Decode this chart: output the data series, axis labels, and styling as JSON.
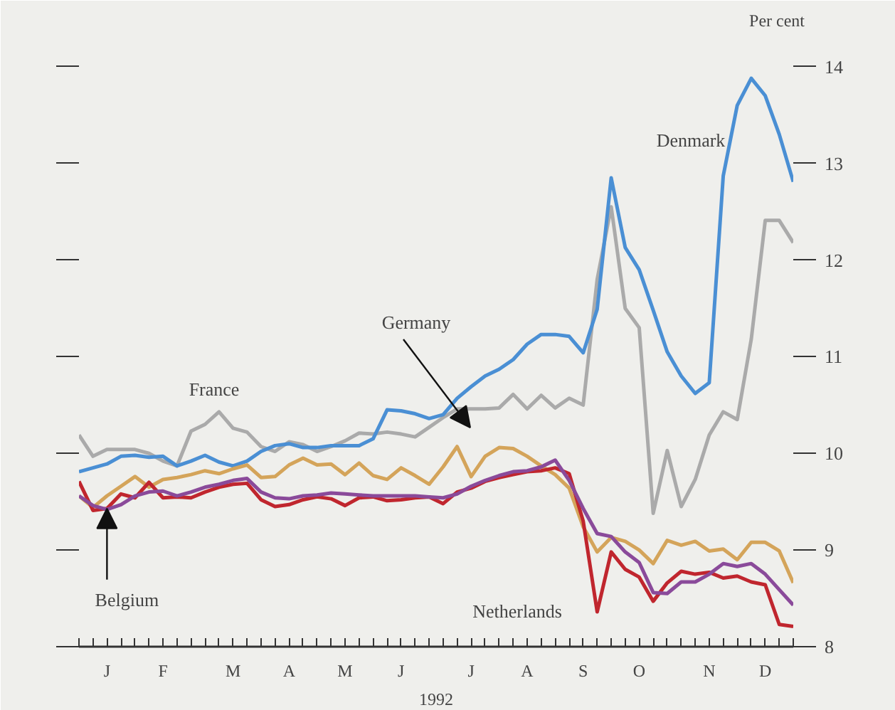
{
  "chart_data": {
    "type": "line",
    "xlabel": "1992",
    "ylabel": "Per cent",
    "categories": [
      null,
      null,
      "J",
      null,
      null,
      null,
      "F",
      null,
      null,
      null,
      null,
      "M",
      null,
      null,
      null,
      "A",
      null,
      null,
      null,
      "M",
      null,
      null,
      null,
      "J",
      null,
      null,
      null,
      null,
      "J",
      null,
      null,
      null,
      "A",
      null,
      null,
      null,
      "S",
      null,
      null,
      null,
      "O",
      null,
      null,
      null,
      null,
      "N",
      null,
      null,
      null,
      "D",
      null,
      null
    ],
    "ylim": [
      8,
      14.3
    ],
    "yticks": [
      8,
      9,
      10,
      11,
      12,
      13,
      14
    ],
    "grid": false,
    "marker": "none",
    "line_style": "solid",
    "series": [
      {
        "color": "#aaaaaa",
        "values": [
          10.19,
          9.97,
          10.04,
          10.04,
          10.04,
          10.0,
          9.92,
          9.87,
          10.23,
          10.3,
          10.43,
          10.26,
          10.22,
          10.07,
          10.02,
          10.12,
          10.09,
          10.02,
          10.07,
          10.13,
          10.21,
          10.2,
          10.22,
          10.2,
          10.17,
          10.27,
          10.37,
          10.46,
          10.46,
          10.46,
          10.47,
          10.61,
          10.46,
          10.6,
          10.47,
          10.57,
          10.5,
          11.8,
          12.55,
          11.5,
          11.3,
          9.38,
          10.03,
          9.45,
          9.73,
          10.19,
          10.43,
          10.35,
          11.18,
          12.41,
          12.41,
          12.18
        ]
      },
      {
        "color": "#4a8fd4",
        "values": [
          9.81,
          9.85,
          9.89,
          9.97,
          9.98,
          9.96,
          9.97,
          9.87,
          9.92,
          9.98,
          9.91,
          9.87,
          9.92,
          10.02,
          10.08,
          10.1,
          10.06,
          10.06,
          10.08,
          10.08,
          10.08,
          10.15,
          10.45,
          10.44,
          10.41,
          10.36,
          10.4,
          10.57,
          10.69,
          10.8,
          10.87,
          10.97,
          11.13,
          11.23,
          11.23,
          11.21,
          11.04,
          11.49,
          12.85,
          12.13,
          11.9,
          11.48,
          11.05,
          10.8,
          10.62,
          10.73,
          12.87,
          13.6,
          13.88,
          13.7,
          13.3,
          12.81
        ]
      },
      {
        "color": "#d4a45a",
        "values": [
          9.56,
          9.44,
          9.56,
          9.66,
          9.76,
          9.65,
          9.73,
          9.75,
          9.78,
          9.82,
          9.79,
          9.84,
          9.88,
          9.75,
          9.76,
          9.88,
          9.95,
          9.88,
          9.89,
          9.78,
          9.9,
          9.77,
          9.73,
          9.85,
          9.77,
          9.68,
          9.86,
          10.07,
          9.76,
          9.97,
          10.06,
          10.05,
          9.97,
          9.87,
          9.78,
          9.64,
          9.24,
          8.98,
          9.13,
          9.09,
          9.0,
          8.86,
          9.1,
          9.05,
          9.09,
          8.99,
          9.01,
          8.9,
          9.08,
          9.08,
          8.99,
          8.66
        ]
      },
      {
        "color": "#c0262e",
        "values": [
          9.71,
          9.41,
          9.43,
          9.58,
          9.54,
          9.7,
          9.54,
          9.55,
          9.54,
          9.6,
          9.65,
          9.68,
          9.69,
          9.52,
          9.45,
          9.47,
          9.52,
          9.55,
          9.53,
          9.46,
          9.54,
          9.55,
          9.51,
          9.52,
          9.54,
          9.55,
          9.48,
          9.6,
          9.64,
          9.71,
          9.75,
          9.78,
          9.81,
          9.82,
          9.85,
          9.79,
          9.3,
          8.36,
          8.98,
          8.8,
          8.72,
          8.47,
          8.66,
          8.78,
          8.75,
          8.77,
          8.71,
          8.73,
          8.67,
          8.64,
          8.23,
          8.21
        ]
      },
      {
        "color": "#8a4a9a",
        "values": [
          9.56,
          9.46,
          9.42,
          9.47,
          9.56,
          9.6,
          9.61,
          9.56,
          9.6,
          9.65,
          9.68,
          9.72,
          9.74,
          9.6,
          9.54,
          9.53,
          9.56,
          9.57,
          9.59,
          9.58,
          9.57,
          9.56,
          9.56,
          9.56,
          9.56,
          9.55,
          9.54,
          9.58,
          9.66,
          9.72,
          9.77,
          9.81,
          9.82,
          9.86,
          9.93,
          9.72,
          9.43,
          9.17,
          9.14,
          8.98,
          8.87,
          8.56,
          8.55,
          8.67,
          8.67,
          8.75,
          8.86,
          8.83,
          8.86,
          8.75,
          8.59,
          8.43
        ]
      }
    ],
    "annotations": [
      "France",
      "Denmark",
      "Germany",
      {
        "text": "Belgium",
        "x": "J",
        "y": 9.43
      },
      "Netherlands"
    ]
  }
}
